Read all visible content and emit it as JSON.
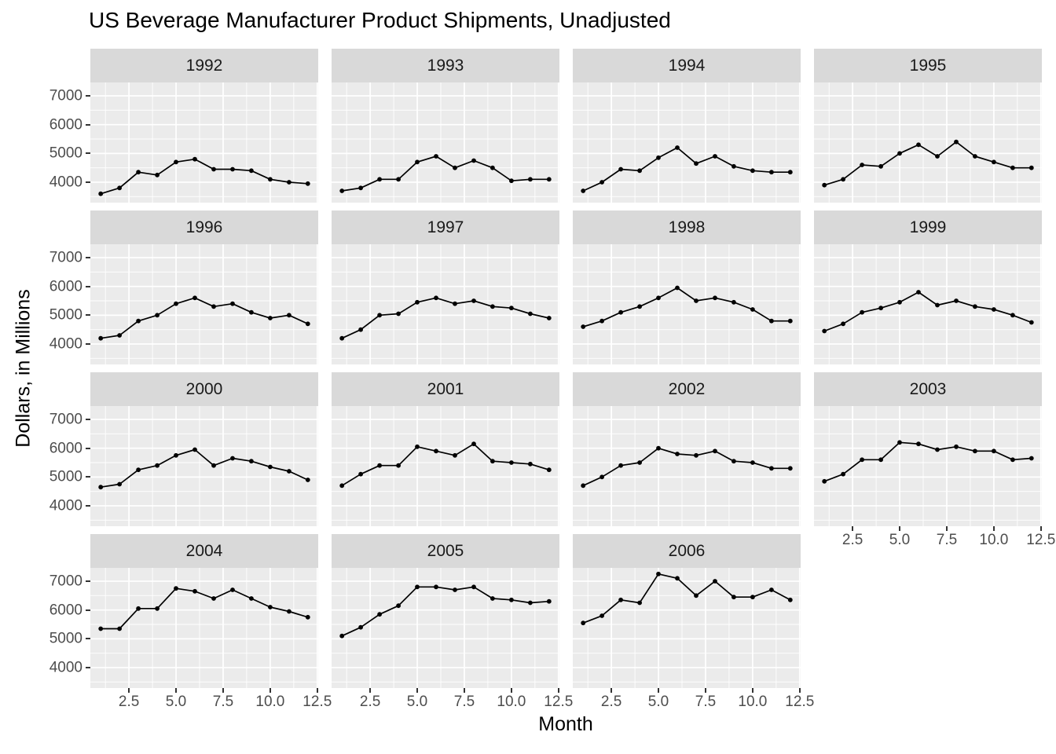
{
  "title": "US Beverage Manufacturer Product Shipments, Unadjusted",
  "axes": {
    "x_label": "Month",
    "y_label": "Dollars, in Millions"
  },
  "colors": {
    "background": "#FFFFFF",
    "panel_background": "#EBEBEB",
    "strip_background": "#D9D9D9",
    "gridline": "#FFFFFF",
    "series_line": "#000000",
    "axis_text": "#4D4D4D",
    "tick_mark": "#333333",
    "strip_text": "#1A1A1A"
  },
  "chart_data": {
    "type": "line",
    "title": "US Beverage Manufacturer Product Shipments, Unadjusted",
    "xlabel": "Month",
    "ylabel": "Dollars, in Millions",
    "facet_by": "year",
    "facet_columns": 4,
    "x": [
      1,
      2,
      3,
      4,
      5,
      6,
      7,
      8,
      9,
      10,
      11,
      12
    ],
    "xlim": [
      0.45,
      12.55
    ],
    "ylim": [
      3291,
      7464
    ],
    "x_ticks": [
      2.5,
      5.0,
      7.5,
      10.0,
      12.5
    ],
    "x_tick_labels": [
      "2.5",
      "5.0",
      "7.5",
      "10.0",
      "12.5"
    ],
    "x_minor_ticks": [
      1.25,
      3.75,
      6.25,
      8.75,
      11.25
    ],
    "y_ticks": [
      4000,
      5000,
      6000,
      7000
    ],
    "y_tick_labels": [
      "4000",
      "5000",
      "6000",
      "7000"
    ],
    "y_minor_ticks": [
      3500,
      4500,
      5500,
      6500
    ],
    "grid": "white major and minor gridlines on gray panel",
    "legend": "none",
    "marker": "point",
    "series": [
      {
        "name": "1992",
        "values": [
          3600,
          3800,
          4350,
          4250,
          4700,
          4800,
          4450,
          4450,
          4400,
          4100,
          4000,
          3950
        ]
      },
      {
        "name": "1993",
        "values": [
          3700,
          3800,
          4100,
          4100,
          4700,
          4900,
          4500,
          4750,
          4500,
          4050,
          4100,
          4100
        ]
      },
      {
        "name": "1994",
        "values": [
          3700,
          4000,
          4450,
          4400,
          4850,
          5200,
          4650,
          4900,
          4550,
          4400,
          4350,
          4350
        ]
      },
      {
        "name": "1995",
        "values": [
          3900,
          4100,
          4600,
          4550,
          5000,
          5300,
          4900,
          5400,
          4900,
          4700,
          4500,
          4500
        ]
      },
      {
        "name": "1996",
        "values": [
          4200,
          4300,
          4800,
          5000,
          5400,
          5600,
          5300,
          5400,
          5100,
          4900,
          5000,
          4700
        ]
      },
      {
        "name": "1997",
        "values": [
          4200,
          4500,
          5000,
          5050,
          5450,
          5600,
          5400,
          5500,
          5300,
          5250,
          5050,
          4900
        ]
      },
      {
        "name": "1998",
        "values": [
          4600,
          4800,
          5100,
          5300,
          5600,
          5950,
          5500,
          5600,
          5450,
          5200,
          4800,
          4800
        ]
      },
      {
        "name": "1999",
        "values": [
          4450,
          4700,
          5100,
          5250,
          5450,
          5800,
          5350,
          5500,
          5300,
          5200,
          5000,
          4750
        ]
      },
      {
        "name": "2000",
        "values": [
          4650,
          4750,
          5250,
          5400,
          5750,
          5950,
          5400,
          5650,
          5550,
          5350,
          5200,
          4900
        ]
      },
      {
        "name": "2001",
        "values": [
          4700,
          5100,
          5400,
          5400,
          6050,
          5900,
          5750,
          6150,
          5550,
          5500,
          5450,
          5250
        ]
      },
      {
        "name": "2002",
        "values": [
          4700,
          5000,
          5400,
          5500,
          6000,
          5800,
          5750,
          5900,
          5550,
          5500,
          5300,
          5300
        ]
      },
      {
        "name": "2003",
        "values": [
          4850,
          5100,
          5600,
          5600,
          6200,
          6150,
          5950,
          6050,
          5900,
          5900,
          5600,
          5650
        ]
      },
      {
        "name": "2004",
        "values": [
          5350,
          5350,
          6050,
          6050,
          6750,
          6650,
          6400,
          6700,
          6400,
          6100,
          5950,
          5750
        ]
      },
      {
        "name": "2005",
        "values": [
          5100,
          5400,
          5850,
          6150,
          6800,
          6800,
          6700,
          6800,
          6400,
          6350,
          6250,
          6300
        ]
      },
      {
        "name": "2006",
        "values": [
          5550,
          5800,
          6350,
          6250,
          7250,
          7100,
          6500,
          7000,
          6450,
          6450,
          6700,
          6350
        ]
      }
    ]
  }
}
